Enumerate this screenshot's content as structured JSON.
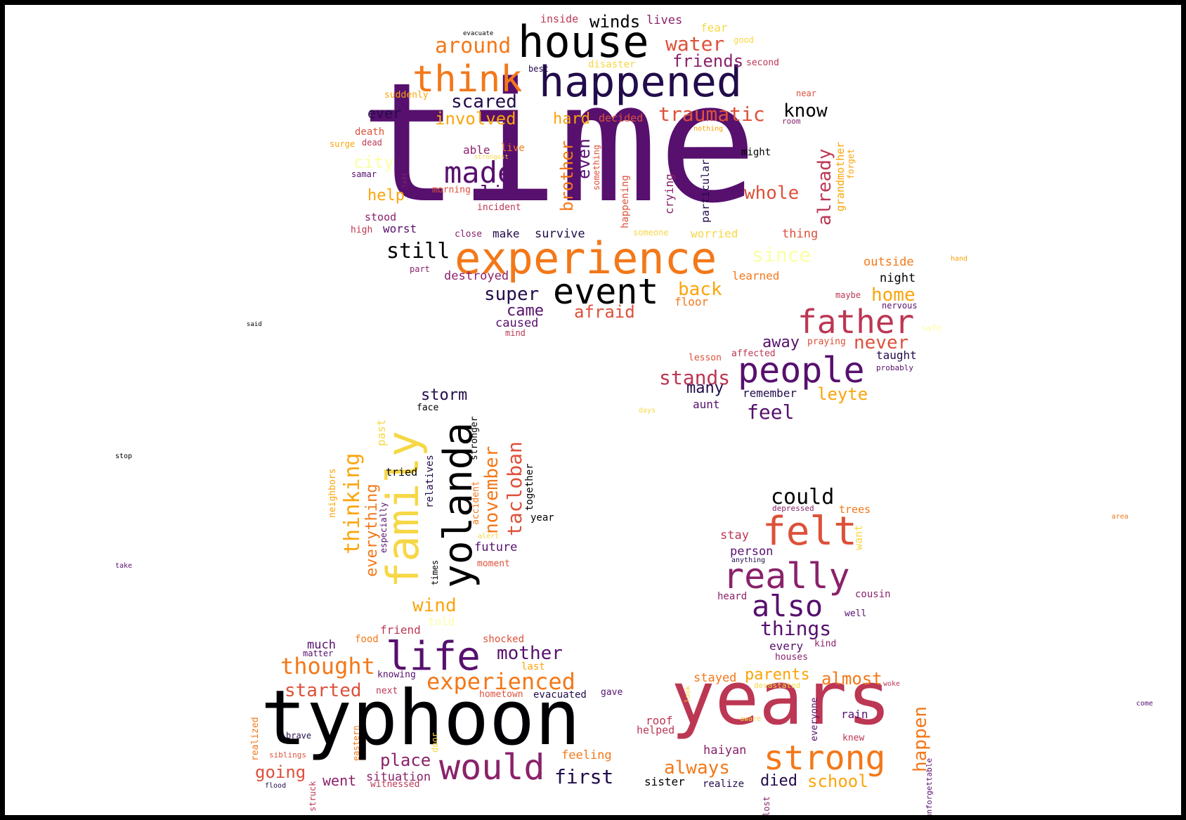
{
  "palette": {
    "black": "#000004",
    "dark_indigo": "#220c4a",
    "purple": "#57106e",
    "violet": "#8a226a",
    "magenta": "#bc3754",
    "red": "#dd513a",
    "orange": "#f37819",
    "amber": "#fba40a",
    "yellow": "#f6d746",
    "light_yellow": "#fcffa4"
  },
  "words": [
    {
      "text": "time",
      "color": "#57106e"
    },
    {
      "text": "house",
      "color": "#000004"
    },
    {
      "text": "happened",
      "color": "#220c4a"
    },
    {
      "text": "think",
      "color": "#f37819"
    },
    {
      "text": "experience",
      "color": "#f37819"
    },
    {
      "text": "event",
      "color": "#000004"
    },
    {
      "text": "made",
      "color": "#57106e"
    },
    {
      "text": "around",
      "color": "#f37819"
    },
    {
      "text": "water",
      "color": "#dd513a"
    },
    {
      "text": "friends",
      "color": "#8a226a"
    },
    {
      "text": "winds",
      "color": "#000004"
    },
    {
      "text": "lives",
      "color": "#8a226a"
    },
    {
      "text": "inside",
      "color": "#bc3754"
    },
    {
      "text": "fear",
      "color": "#f6d746"
    },
    {
      "text": "evacuate",
      "color": "#000004"
    },
    {
      "text": "good",
      "color": "#f6d746"
    },
    {
      "text": "disaster",
      "color": "#f6d746"
    },
    {
      "text": "second",
      "color": "#bc3754"
    },
    {
      "text": "best",
      "color": "#220c4a"
    },
    {
      "text": "suddenly",
      "color": "#fba40a"
    },
    {
      "text": "near",
      "color": "#dd513a"
    },
    {
      "text": "scared",
      "color": "#220c4a"
    },
    {
      "text": "involved",
      "color": "#fba40a"
    },
    {
      "text": "ever",
      "color": "#220c4a"
    },
    {
      "text": "hard",
      "color": "#fba40a"
    },
    {
      "text": "decided",
      "color": "#dd513a"
    },
    {
      "text": "traumatic",
      "color": "#dd513a"
    },
    {
      "text": "know",
      "color": "#000004"
    },
    {
      "text": "room",
      "color": "#8a226a"
    },
    {
      "text": "nothing",
      "color": "#fba40a"
    },
    {
      "text": "death",
      "color": "#dd513a"
    },
    {
      "text": "surge",
      "color": "#fba40a"
    },
    {
      "text": "dead",
      "color": "#bc3754"
    },
    {
      "text": "able",
      "color": "#8a226a"
    },
    {
      "text": "live",
      "color": "#f37819"
    },
    {
      "text": "strongest",
      "color": "#f6d746"
    },
    {
      "text": "might",
      "color": "#000004"
    },
    {
      "text": "city",
      "color": "#fcffa4"
    },
    {
      "text": "samar",
      "color": "#57106e"
    },
    {
      "text": "left",
      "color": "#8a226a"
    },
    {
      "text": "help",
      "color": "#fba40a"
    },
    {
      "text": "like",
      "color": "#57106e"
    },
    {
      "text": "morning",
      "color": "#dd513a"
    },
    {
      "text": "incident",
      "color": "#bc3754"
    },
    {
      "text": "brother",
      "color": "#f37819"
    },
    {
      "text": "even",
      "color": "#57106e"
    },
    {
      "text": "something",
      "color": "#dd513a"
    },
    {
      "text": "happening",
      "color": "#dd513a"
    },
    {
      "text": "crying",
      "color": "#8a226a"
    },
    {
      "text": "particular",
      "color": "#220c4a"
    },
    {
      "text": "whole",
      "color": "#dd513a"
    },
    {
      "text": "already",
      "color": "#bc3754"
    },
    {
      "text": "grandmother",
      "color": "#fba40a"
    },
    {
      "text": "forget",
      "color": "#fba40a"
    },
    {
      "text": "stood",
      "color": "#8a226a"
    },
    {
      "text": "high",
      "color": "#bc3754"
    },
    {
      "text": "worst",
      "color": "#57106e"
    },
    {
      "text": "close",
      "color": "#8a226a"
    },
    {
      "text": "make",
      "color": "#220c4a"
    },
    {
      "text": "survive",
      "color": "#220c4a"
    },
    {
      "text": "someone",
      "color": "#f6d746"
    },
    {
      "text": "worried",
      "color": "#f6d746"
    },
    {
      "text": "thing",
      "color": "#dd513a"
    },
    {
      "text": "still",
      "color": "#000004"
    },
    {
      "text": "since",
      "color": "#fcffa4"
    },
    {
      "text": "part",
      "color": "#8a226a"
    },
    {
      "text": "destroyed",
      "color": "#8a226a"
    },
    {
      "text": "learned",
      "color": "#f37819"
    },
    {
      "text": "super",
      "color": "#220c4a"
    },
    {
      "text": "back",
      "color": "#fba40a"
    },
    {
      "text": "came",
      "color": "#57106e"
    },
    {
      "text": "afraid",
      "color": "#dd513a"
    },
    {
      "text": "floor",
      "color": "#f37819"
    },
    {
      "text": "caused",
      "color": "#57106e"
    },
    {
      "text": "mind",
      "color": "#bc3754"
    },
    {
      "text": "outside",
      "color": "#f37819"
    },
    {
      "text": "hand",
      "color": "#fba40a"
    },
    {
      "text": "night",
      "color": "#000004"
    },
    {
      "text": "home",
      "color": "#fba40a"
    },
    {
      "text": "maybe",
      "color": "#bc3754"
    },
    {
      "text": "nervous",
      "color": "#57106e"
    },
    {
      "text": "father",
      "color": "#bc3754"
    },
    {
      "text": "safe",
      "color": "#fcffa4"
    },
    {
      "text": "said",
      "color": "#000004"
    },
    {
      "text": "away",
      "color": "#57106e"
    },
    {
      "text": "praying",
      "color": "#dd513a"
    },
    {
      "text": "never",
      "color": "#dd513a"
    },
    {
      "text": "lesson",
      "color": "#dd513a"
    },
    {
      "text": "affected",
      "color": "#bc3754"
    },
    {
      "text": "taught",
      "color": "#220c4a"
    },
    {
      "text": "probably",
      "color": "#57106e"
    },
    {
      "text": "stands",
      "color": "#bc3754"
    },
    {
      "text": "people",
      "color": "#57106e"
    },
    {
      "text": "many",
      "color": "#220c4a"
    },
    {
      "text": "remember",
      "color": "#220c4a"
    },
    {
      "text": "leyte",
      "color": "#fba40a"
    },
    {
      "text": "aunt",
      "color": "#57106e"
    },
    {
      "text": "feel",
      "color": "#57106e"
    },
    {
      "text": "days",
      "color": "#f6d746"
    },
    {
      "text": "storm",
      "color": "#220c4a"
    },
    {
      "text": "face",
      "color": "#000004"
    },
    {
      "text": "stronger",
      "color": "#000004"
    },
    {
      "text": "past",
      "color": "#f6d746"
    },
    {
      "text": "family",
      "color": "#f6d746"
    },
    {
      "text": "yolanda",
      "color": "#000004"
    },
    {
      "text": "thinking",
      "color": "#fba40a"
    },
    {
      "text": "november",
      "color": "#f37819"
    },
    {
      "text": "tacloban",
      "color": "#dd513a"
    },
    {
      "text": "together",
      "color": "#000004"
    },
    {
      "text": "relatives",
      "color": "#220c4a"
    },
    {
      "text": "tried",
      "color": "#000004"
    },
    {
      "text": "everything",
      "color": "#f37819"
    },
    {
      "text": "especially",
      "color": "#57106e"
    },
    {
      "text": "neighbors",
      "color": "#fba40a"
    },
    {
      "text": "accident",
      "color": "#f37819"
    },
    {
      "text": "alert",
      "color": "#f6d746"
    },
    {
      "text": "year",
      "color": "#000004"
    },
    {
      "text": "future",
      "color": "#57106e"
    },
    {
      "text": "moment",
      "color": "#dd513a"
    },
    {
      "text": "times",
      "color": "#000004"
    },
    {
      "text": "wind",
      "color": "#fba40a"
    },
    {
      "text": "told",
      "color": "#fcffa4"
    },
    {
      "text": "stop",
      "color": "#000004"
    },
    {
      "text": "take",
      "color": "#57106e"
    },
    {
      "text": "could",
      "color": "#000004"
    },
    {
      "text": "depressed",
      "color": "#8a226a"
    },
    {
      "text": "trees",
      "color": "#f37819"
    },
    {
      "text": "felt",
      "color": "#dd513a"
    },
    {
      "text": "stay",
      "color": "#bc3754"
    },
    {
      "text": "want",
      "color": "#f6d746"
    },
    {
      "text": "person",
      "color": "#57106e"
    },
    {
      "text": "anything",
      "color": "#220c4a"
    },
    {
      "text": "life",
      "color": "#57106e"
    },
    {
      "text": "area",
      "color": "#f37819"
    },
    {
      "text": "really",
      "color": "#8a226a"
    },
    {
      "text": "heard",
      "color": "#8a226a"
    },
    {
      "text": "cousin",
      "color": "#8a226a"
    },
    {
      "text": "also",
      "color": "#57106e"
    },
    {
      "text": "well",
      "color": "#57106e"
    },
    {
      "text": "things",
      "color": "#57106e"
    },
    {
      "text": "every",
      "color": "#57106e"
    },
    {
      "text": "kind",
      "color": "#8a226a"
    },
    {
      "text": "houses",
      "color": "#8a226a"
    },
    {
      "text": "friend",
      "color": "#bc3754"
    },
    {
      "text": "food",
      "color": "#f37819"
    },
    {
      "text": "shocked",
      "color": "#dd513a"
    },
    {
      "text": "much",
      "color": "#57106e"
    },
    {
      "text": "matter",
      "color": "#57106e"
    },
    {
      "text": "mother",
      "color": "#57106e"
    },
    {
      "text": "thought",
      "color": "#f37819"
    },
    {
      "text": "last",
      "color": "#fba40a"
    },
    {
      "text": "knowing",
      "color": "#57106e"
    },
    {
      "text": "experienced",
      "color": "#f37819"
    },
    {
      "text": "started",
      "color": "#dd513a"
    },
    {
      "text": "next",
      "color": "#bc3754"
    },
    {
      "text": "hometown",
      "color": "#dd513a"
    },
    {
      "text": "evacuated",
      "color": "#220c4a"
    },
    {
      "text": "gave",
      "color": "#57106e"
    },
    {
      "text": "typhoon",
      "color": "#000004"
    },
    {
      "text": "years",
      "color": "#bc3754"
    },
    {
      "text": "stayed",
      "color": "#f37819"
    },
    {
      "text": "parents",
      "color": "#fba40a"
    },
    {
      "text": "almost",
      "color": "#f37819"
    },
    {
      "text": "devastated",
      "color": "#f6d746"
    },
    {
      "text": "woke",
      "color": "#bc3754"
    },
    {
      "text": "look",
      "color": "#f6d746"
    },
    {
      "text": "aware",
      "color": "#f6d746"
    },
    {
      "text": "everyone",
      "color": "#57106e"
    },
    {
      "text": "happen",
      "color": "#f37819"
    },
    {
      "text": "rain",
      "color": "#57106e"
    },
    {
      "text": "knew",
      "color": "#bc3754"
    },
    {
      "text": "roof",
      "color": "#bc3754"
    },
    {
      "text": "helped",
      "color": "#bc3754"
    },
    {
      "text": "come",
      "color": "#57106e"
    },
    {
      "text": "realized",
      "color": "#f37819"
    },
    {
      "text": "brave",
      "color": "#220c4a"
    },
    {
      "text": "eastern",
      "color": "#f37819"
    },
    {
      "text": "door",
      "color": "#f6d746"
    },
    {
      "text": "siblings",
      "color": "#dd513a"
    },
    {
      "text": "place",
      "color": "#8a226a"
    },
    {
      "text": "would",
      "color": "#8a226a"
    },
    {
      "text": "first",
      "color": "#220c4a"
    },
    {
      "text": "feeling",
      "color": "#f37819"
    },
    {
      "text": "going",
      "color": "#dd513a"
    },
    {
      "text": "went",
      "color": "#8a226a"
    },
    {
      "text": "situation",
      "color": "#8a226a"
    },
    {
      "text": "witnessed",
      "color": "#bc3754"
    },
    {
      "text": "flood",
      "color": "#220c4a"
    },
    {
      "text": "struck",
      "color": "#bc3754"
    },
    {
      "text": "haiyan",
      "color": "#8a226a"
    },
    {
      "text": "always",
      "color": "#f37819"
    },
    {
      "text": "strong",
      "color": "#f37819"
    },
    {
      "text": "sister",
      "color": "#000004"
    },
    {
      "text": "realize",
      "color": "#220c4a"
    },
    {
      "text": "died",
      "color": "#220c4a"
    },
    {
      "text": "school",
      "color": "#fba40a"
    },
    {
      "text": "lost",
      "color": "#8a226a"
    },
    {
      "text": "unforgettable",
      "color": "#57106e"
    }
  ]
}
